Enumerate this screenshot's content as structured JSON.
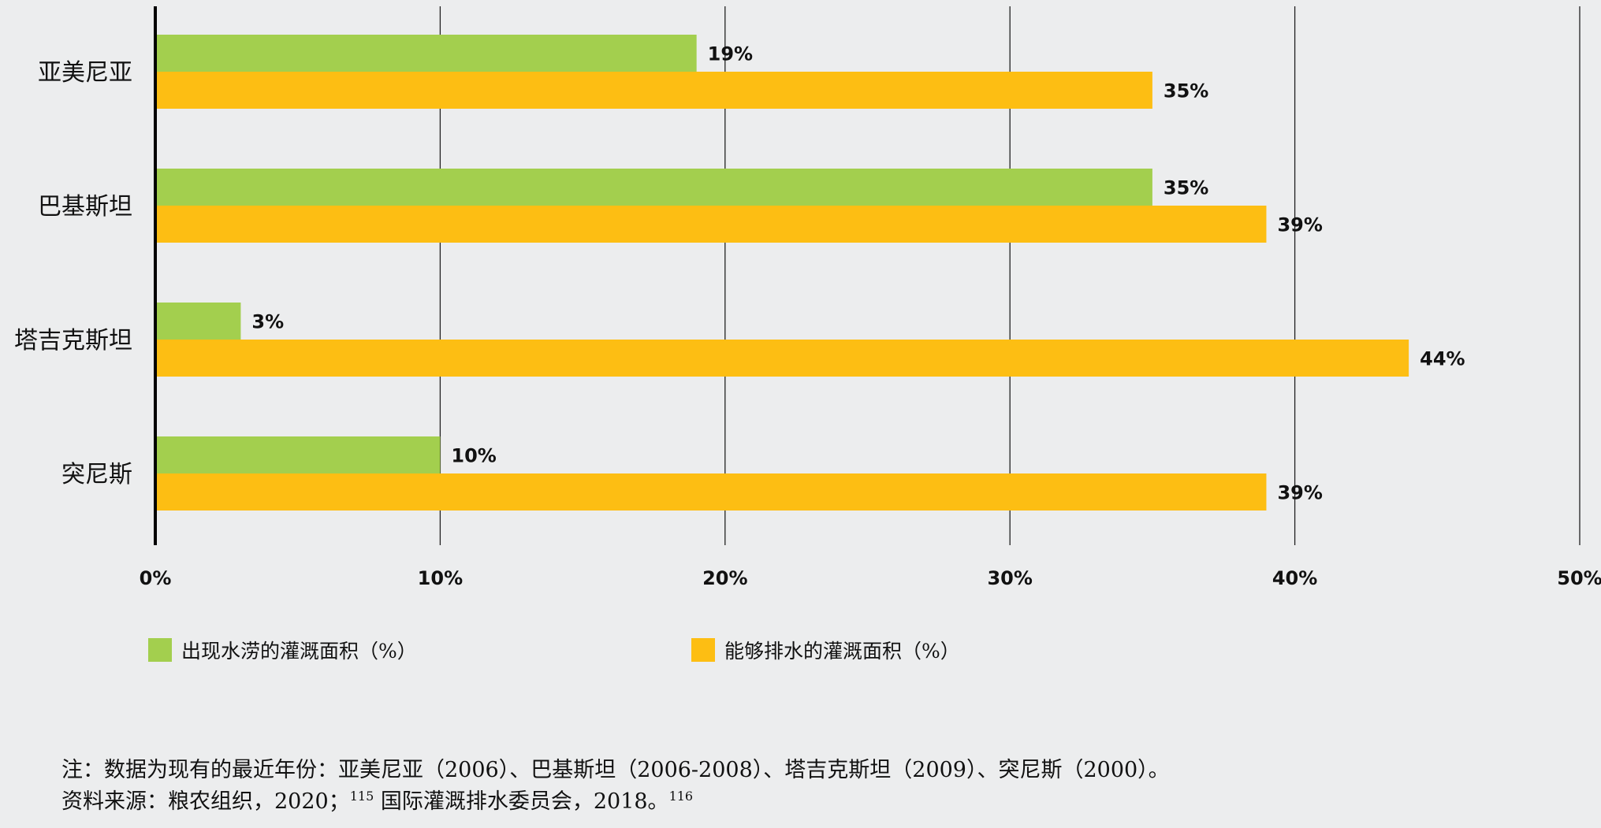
{
  "chart_data": {
    "type": "bar",
    "orientation": "horizontal",
    "categories": [
      "亚美尼亚",
      "巴基斯坦",
      "塔吉克斯坦",
      "突尼斯"
    ],
    "series": [
      {
        "name": "出现水涝的灌溉面积（%）",
        "color": "#a3cf4e",
        "values": [
          19,
          35,
          3,
          10
        ],
        "labels": [
          "19%",
          "35%",
          "3%",
          "10%"
        ]
      },
      {
        "name": "能够排水的灌溉面积（%）",
        "color": "#fdbe13",
        "values": [
          35,
          39,
          44,
          39
        ],
        "labels": [
          "35%",
          "39%",
          "44%",
          "39%"
        ]
      }
    ],
    "xlim": [
      0,
      50
    ],
    "xticks": [
      0,
      10,
      20,
      30,
      40,
      50
    ],
    "xtick_labels": [
      "0%",
      "10%",
      "20%",
      "30%",
      "40%",
      "50%"
    ],
    "grid": true,
    "legend_position": "bottom-left"
  },
  "notes": {
    "note": "注：数据为现有的最近年份：亚美尼亚（2006）、巴基斯坦（2006-2008）、塔吉克斯坦（2009）、突尼斯（2000）。",
    "source_prefix": "资料来源：粮农组织，2020；",
    "source_ref1": "115",
    "source_mid": " 国际灌溉排水委员会，2018。",
    "source_ref2": "116"
  }
}
